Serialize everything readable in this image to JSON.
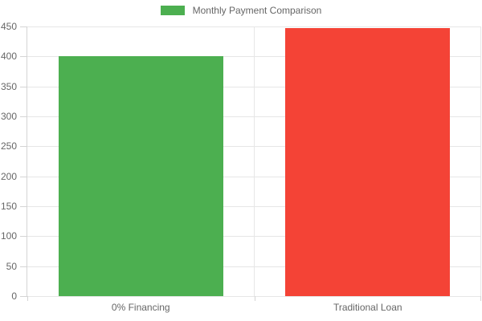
{
  "chart_data": {
    "type": "bar",
    "title": "Monthly Payment Comparison",
    "categories": [
      "0% Financing",
      "Traditional Loan"
    ],
    "values": [
      400,
      447
    ],
    "bar_colors": [
      "#4caf50",
      "#f44336"
    ],
    "xlabel": "",
    "ylabel": "",
    "ylim": [
      0,
      450
    ],
    "ytick_step": 50,
    "ytick_labels": [
      "0",
      "50",
      "100",
      "150",
      "200",
      "250",
      "300",
      "350",
      "400",
      "450"
    ],
    "grid": true,
    "legend_position": "top"
  },
  "colors": {
    "axis_text": "#666666",
    "gridline": "#e6e6e6",
    "axis_line": "#d4d4d4",
    "background": "#ffffff",
    "legend_swatch": "#4caf50"
  }
}
